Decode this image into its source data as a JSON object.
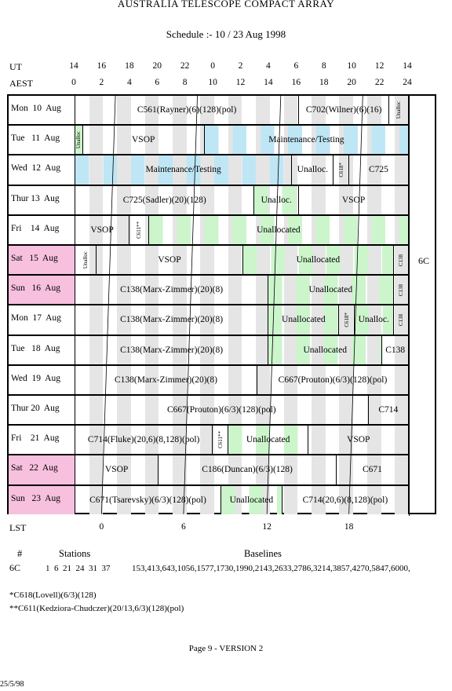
{
  "title": "AUSTRALIA TELESCOPE COMPACT ARRAY",
  "subtitle": "Schedule :- 10 / 23 Aug 1998",
  "ut_label": "UT",
  "aest_label": "AEST",
  "lst_label": "LST",
  "ut_ticks": [
    "14",
    "16",
    "18",
    "20",
    "22",
    "0",
    "2",
    "4",
    "6",
    "8",
    "10",
    "12",
    "14"
  ],
  "aest_ticks": [
    "0",
    "2",
    "4",
    "6",
    "8",
    "10",
    "12",
    "14",
    "16",
    "18",
    "20",
    "22",
    "24"
  ],
  "lst_ticks": [
    "0",
    "6",
    "12",
    "18"
  ],
  "config": "6C",
  "colors": {
    "weekend": "#f7c0de",
    "blue": "#bfe6f5",
    "green": "#ccf5cc",
    "grey": "#e5e5e5"
  },
  "days": [
    {
      "label": "Mon  10  Aug",
      "weekend": false,
      "segments": [
        {
          "start": 0,
          "end": 16.1,
          "text": ""
        },
        {
          "start": 0,
          "end": 16.1,
          "text": "C561(Rayner)(6)(128)(pol)"
        },
        {
          "start": 16.1,
          "end": 22.6,
          "text": "C702(Wilner)(6)(16)"
        },
        {
          "start": 22.6,
          "end": 24,
          "text": "Unalloc",
          "vertical": true
        }
      ]
    },
    {
      "label": "Tue   11  Aug",
      "weekend": false,
      "segments": [
        {
          "start": 0,
          "end": 0.55,
          "text": "Unalloc",
          "vertical": true,
          "color": "green"
        },
        {
          "start": 0.55,
          "end": 9.3,
          "text": "VSOP"
        },
        {
          "start": 9.3,
          "end": 24,
          "text": "Maintenance/Testing",
          "color": "blue"
        }
      ]
    },
    {
      "label": "Wed  12  Aug",
      "weekend": false,
      "segments": [
        {
          "start": 0,
          "end": 15.6,
          "text": "Maintenance/Testing",
          "color": "blue"
        },
        {
          "start": 15.6,
          "end": 18.6,
          "text": "Unalloc."
        },
        {
          "start": 18.6,
          "end": 19.7,
          "text": "C618*",
          "vertical": true
        },
        {
          "start": 19.7,
          "end": 24,
          "text": "C725"
        }
      ]
    },
    {
      "label": "Thur 13  Aug",
      "weekend": false,
      "segments": [
        {
          "start": 0,
          "end": 12.9,
          "text": "C725(Sadler)(20)(128)"
        },
        {
          "start": 12.9,
          "end": 16.1,
          "text": "Unalloc.",
          "color": "green"
        },
        {
          "start": 16.1,
          "end": 24,
          "text": "VSOP"
        }
      ]
    },
    {
      "label": "Fri    14  Aug",
      "weekend": false,
      "segments": [
        {
          "start": 0,
          "end": 3.9,
          "text": "VSOP"
        },
        {
          "start": 3.9,
          "end": 5.3,
          "text": "C611**",
          "vertical": true
        },
        {
          "start": 5.3,
          "end": 24,
          "text": "Unallocated",
          "color": "green"
        }
      ]
    },
    {
      "label": "Sat   15  Aug",
      "weekend": true,
      "segments": [
        {
          "start": 0,
          "end": 1.5,
          "text": "Unalloc",
          "vertical": true
        },
        {
          "start": 1.5,
          "end": 12.1,
          "text": "VSOP"
        },
        {
          "start": 12.1,
          "end": 22.9,
          "text": "Unallocated",
          "color": "green"
        },
        {
          "start": 22.9,
          "end": 24,
          "text": "C138",
          "vertical": true
        }
      ]
    },
    {
      "label": "Sun   16  Aug",
      "weekend": true,
      "segments": [
        {
          "start": 0,
          "end": 13.9,
          "text": "C138(Marx-Zimmer)(20)(8)"
        },
        {
          "start": 13.9,
          "end": 22.9,
          "text": "Unallocated",
          "color": "green"
        },
        {
          "start": 22.9,
          "end": 24,
          "text": "C138",
          "vertical": true
        }
      ]
    },
    {
      "label": "Mon  17  Aug",
      "weekend": false,
      "segments": [
        {
          "start": 0,
          "end": 13.9,
          "text": "C138(Marx-Zimmer)(20)(8)"
        },
        {
          "start": 13.9,
          "end": 19.0,
          "text": "Unallocated",
          "color": "green"
        },
        {
          "start": 19.0,
          "end": 20.1,
          "text": "C618*",
          "vertical": true
        },
        {
          "start": 20.1,
          "end": 22.9,
          "text": "Unalloc.",
          "color": "green"
        },
        {
          "start": 22.9,
          "end": 24,
          "text": "C138",
          "vertical": true
        }
      ]
    },
    {
      "label": "Tue   18  Aug",
      "weekend": false,
      "segments": [
        {
          "start": 0,
          "end": 13.9,
          "text": "C138(Marx-Zimmer)(20)(8)"
        },
        {
          "start": 13.9,
          "end": 22.1,
          "text": "Unallocated",
          "color": "green"
        },
        {
          "start": 22.1,
          "end": 24,
          "text": "C138"
        }
      ]
    },
    {
      "label": "Wed  19  Aug",
      "weekend": false,
      "segments": [
        {
          "start": 0,
          "end": 13.1,
          "text": "C138(Marx-Zimmer)(20)(8)"
        },
        {
          "start": 13.1,
          "end": 24,
          "text": "C667(Prouton)(6/3)(128)(pol)"
        }
      ]
    },
    {
      "label": "Thur 20  Aug",
      "weekend": false,
      "segments": [
        {
          "start": 0,
          "end": 21.1,
          "text": "C667(Prouton)(6/3)(128)(pol)"
        },
        {
          "start": 21.1,
          "end": 24,
          "text": "C714"
        }
      ]
    },
    {
      "label": "Fri    21  Aug",
      "weekend": false,
      "segments": [
        {
          "start": 0,
          "end": 9.9,
          "text": "C714(Fluke)(20,6)(8,128)(pol)"
        },
        {
          "start": 9.9,
          "end": 11.0,
          "text": "C611**",
          "vertical": true
        },
        {
          "start": 11.0,
          "end": 16.8,
          "text": "Unallocated",
          "color": "green"
        },
        {
          "start": 16.8,
          "end": 24,
          "text": "VSOP"
        }
      ]
    },
    {
      "label": "Sat   22  Aug",
      "weekend": true,
      "segments": [
        {
          "start": 0,
          "end": 6.0,
          "text": "VSOP"
        },
        {
          "start": 6.0,
          "end": 18.8,
          "text": "C186(Duncan)(6/3)(128)"
        },
        {
          "start": 18.8,
          "end": 24,
          "text": "C671"
        }
      ]
    },
    {
      "label": "Sun   23  Aug",
      "weekend": true,
      "segments": [
        {
          "start": 0,
          "end": 10.5,
          "text": "C671(Tsarevsky)(6/3)(128)(pol)"
        },
        {
          "start": 10.5,
          "end": 14.9,
          "text": "Unallocated",
          "color": "green"
        },
        {
          "start": 14.9,
          "end": 24,
          "text": "C714(20,6)(8,128)(pol)"
        }
      ]
    }
  ],
  "stations_table": {
    "col_hash": "#",
    "col_stations": "Stations",
    "col_baselines": "Baselines",
    "config": "6C",
    "stations": "1  6  21  24  31  37",
    "baselines": "153,413,643,1056,1577,1730,1990,2143,2633,2786,3214,3857,4270,5847,6000,"
  },
  "footnotes": [
    "*C618(Lovell)(6/3)(128)",
    "**C611(Kedziora-Chudczer)(20/13,6/3)(128)(pol)"
  ],
  "page": "Page 9 - VERSION 2",
  "date": "25/5/98"
}
